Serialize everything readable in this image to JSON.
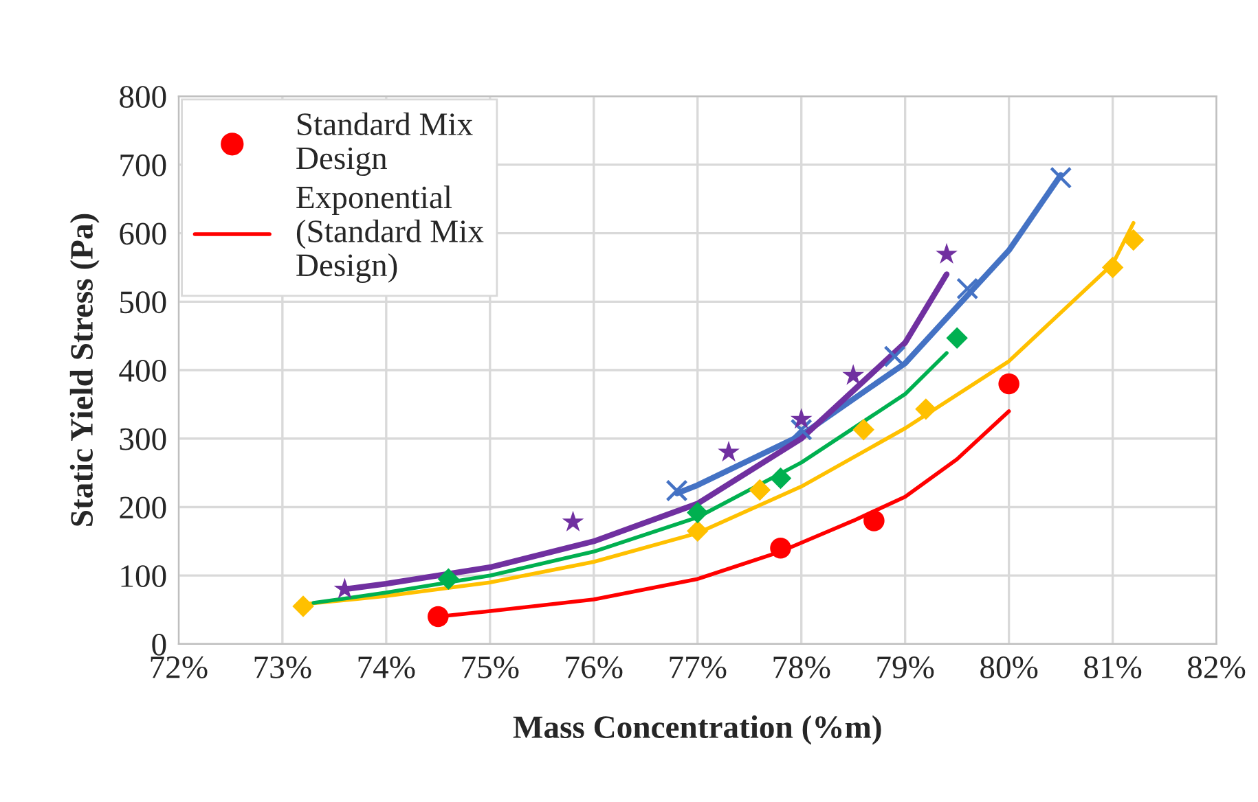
{
  "chart_data": {
    "type": "scatter",
    "xlabel": "Mass Concentration (%m)",
    "ylabel": "Static Yield Stress (Pa)",
    "xlim": [
      72,
      82
    ],
    "ylim": [
      0,
      800
    ],
    "xticks": [
      {
        "value": 72,
        "label": "72%"
      },
      {
        "value": 73,
        "label": "73%"
      },
      {
        "value": 74,
        "label": "74%"
      },
      {
        "value": 75,
        "label": "75%"
      },
      {
        "value": 76,
        "label": "76%"
      },
      {
        "value": 77,
        "label": "77%"
      },
      {
        "value": 78,
        "label": "78%"
      },
      {
        "value": 79,
        "label": "79%"
      },
      {
        "value": 80,
        "label": "80%"
      },
      {
        "value": 81,
        "label": "81%"
      },
      {
        "value": 82,
        "label": "82%"
      }
    ],
    "yticks": [
      0,
      100,
      200,
      300,
      400,
      500,
      600,
      700,
      800
    ],
    "grid": true,
    "legend": "top left",
    "series": [
      {
        "name": "Standard Mix Design",
        "marker": "circle",
        "color": "#ff0000",
        "x": [
          74.5,
          77.8,
          78.7,
          80.0
        ],
        "values": [
          40,
          140,
          180,
          380
        ]
      },
      {
        "name": "Exponential (Standard Mix Design)",
        "type": "line",
        "marker": "none",
        "color": "#ff0000",
        "x": [
          74.5,
          75,
          76,
          77,
          77.8,
          78.5,
          79,
          79.5,
          80
        ],
        "values": [
          40,
          48,
          65,
          95,
          135,
          180,
          215,
          270,
          340
        ]
      },
      {
        "marker": "diamond",
        "color": "#ffc000",
        "x": [
          73.2,
          77.0,
          77.6,
          78.6,
          79.2,
          81.0,
          81.2
        ],
        "values": [
          55,
          165,
          225,
          313,
          343,
          550,
          590
        ]
      },
      {
        "type": "line",
        "marker": "none",
        "color": "#ffc000",
        "x": [
          73.2,
          74,
          75,
          76,
          77,
          78,
          79,
          80,
          81,
          81.2
        ],
        "values": [
          58,
          70,
          90,
          120,
          162,
          230,
          315,
          413,
          555,
          615
        ]
      },
      {
        "marker": "diamond",
        "color": "#00b050",
        "x": [
          74.6,
          77.0,
          77.8,
          79.5
        ],
        "values": [
          95,
          192,
          242,
          447
        ]
      },
      {
        "type": "line",
        "marker": "none",
        "color": "#00b050",
        "x": [
          73.3,
          74,
          75,
          76,
          77,
          78,
          79,
          79.4
        ],
        "values": [
          60,
          75,
          100,
          135,
          185,
          265,
          365,
          425
        ]
      },
      {
        "marker": "cross",
        "color": "#4472c4",
        "x": [
          76.8,
          78.0,
          78.9,
          79.6,
          80.5
        ],
        "values": [
          224,
          313,
          420,
          519,
          681
        ]
      },
      {
        "type": "line",
        "marker": "none",
        "color": "#4472c4",
        "x": [
          76.8,
          77,
          78,
          79,
          80,
          80.5
        ],
        "values": [
          220,
          232,
          305,
          410,
          575,
          685
        ]
      },
      {
        "marker": "star",
        "color": "#7030a0",
        "x": [
          73.6,
          75.8,
          77.3,
          78.0,
          78.5,
          79.4
        ],
        "values": [
          80,
          178,
          280,
          328,
          392,
          569
        ]
      },
      {
        "type": "line",
        "marker": "none",
        "color": "#7030a0",
        "x": [
          73.6,
          74,
          75,
          76,
          77,
          78,
          79,
          79.4
        ],
        "values": [
          80,
          88,
          112,
          150,
          205,
          300,
          440,
          540
        ]
      }
    ]
  }
}
